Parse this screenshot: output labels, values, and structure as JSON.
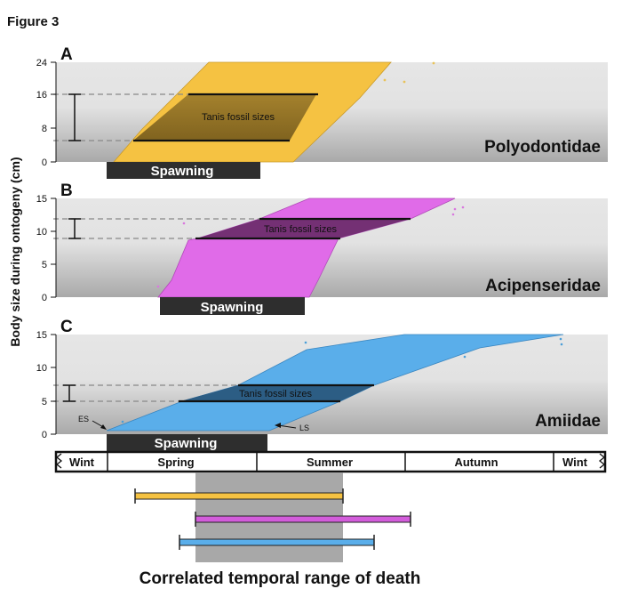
{
  "figure": {
    "label": "Figure 3",
    "y_axis_label": "Body size during ontogeny (cm)",
    "bottom_caption": "Correlated temporal range of death"
  },
  "chart_data": [
    {
      "type": "area",
      "panel": "A",
      "family": "Polyodontidae",
      "ylim": [
        0,
        24
      ],
      "yticks": [
        0,
        8,
        16,
        24
      ],
      "growth_band_color": "#f5c242",
      "fossil_band_color": "#8a6a22",
      "tanis_label": "Tanis fossil sizes",
      "tanis_range": [
        5,
        16
      ],
      "spawning_label": "Spawning"
    },
    {
      "type": "area",
      "panel": "B",
      "family": "Acipenseridae",
      "ylim": [
        0,
        15
      ],
      "yticks": [
        0,
        5,
        10,
        15
      ],
      "growth_band_color": "#e06be8",
      "fossil_band_color": "#6e2d6e",
      "tanis_label": "Tanis fossil sizes",
      "tanis_range": [
        9,
        12
      ],
      "spawning_label": "Spawning"
    },
    {
      "type": "area",
      "panel": "C",
      "family": "Amiidae",
      "ylim": [
        0,
        15
      ],
      "yticks": [
        0,
        5,
        10,
        15
      ],
      "growth_band_color": "#5aaeea",
      "fossil_band_color": "#2a587e",
      "tanis_label": "Tanis fossil sizes",
      "tanis_range": [
        5,
        7.5
      ],
      "spawning_label": "Spawning",
      "annotations": [
        "ES",
        "LS"
      ]
    }
  ],
  "seasons": [
    "Wint",
    "Spring",
    "Summer",
    "Autumn",
    "Wint"
  ],
  "death_range_bars": [
    {
      "family": "Polyodontidae",
      "color": "#f5c242"
    },
    {
      "family": "Acipenseridae",
      "color": "#d35ddb"
    },
    {
      "family": "Amiidae",
      "color": "#5aaeea"
    }
  ]
}
